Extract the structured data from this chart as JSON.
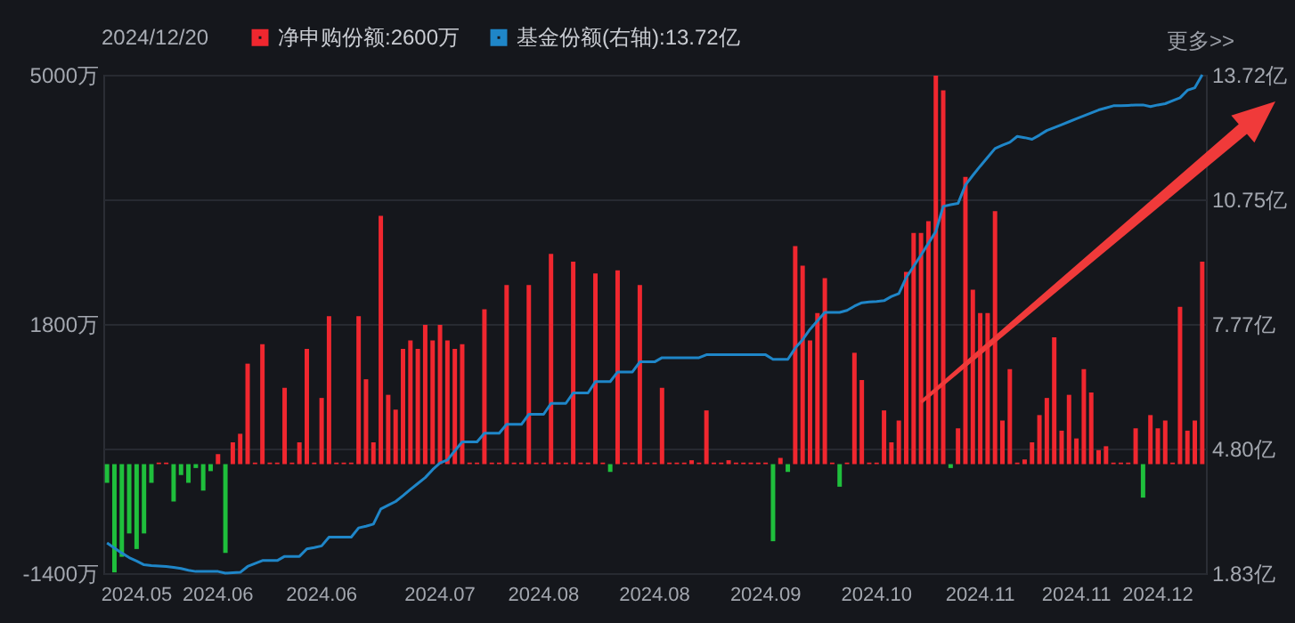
{
  "chart_data": {
    "type": "bar",
    "title": "2024/12/20",
    "categories": [
      null,
      null,
      null,
      null,
      "2024.05",
      null,
      null,
      null,
      null,
      null,
      null,
      null,
      null,
      null,
      null,
      "2024.06",
      null,
      null,
      null,
      null,
      null,
      null,
      null,
      null,
      null,
      null,
      null,
      null,
      null,
      "2024.06",
      null,
      null,
      null,
      null,
      null,
      null,
      null,
      null,
      null,
      null,
      null,
      null,
      null,
      null,
      null,
      "2024.07",
      null,
      null,
      null,
      null,
      null,
      null,
      null,
      null,
      null,
      null,
      null,
      null,
      null,
      "2024.08",
      null,
      null,
      null,
      null,
      null,
      null,
      null,
      null,
      null,
      null,
      null,
      null,
      null,
      null,
      "2024.08",
      null,
      null,
      null,
      null,
      null,
      null,
      null,
      null,
      null,
      null,
      null,
      null,
      null,
      null,
      "2024.09",
      null,
      null,
      null,
      null,
      null,
      null,
      null,
      null,
      null,
      null,
      null,
      null,
      null,
      null,
      "2024.10",
      null,
      null,
      null,
      null,
      null,
      null,
      null,
      null,
      null,
      null,
      null,
      null,
      null,
      "2024.11",
      null,
      null,
      null,
      null,
      null,
      null,
      null,
      null,
      null,
      null,
      null,
      null,
      "2024.11",
      null,
      null,
      null,
      null,
      null,
      null,
      null,
      null,
      null,
      null,
      "2024.12",
      null,
      null,
      null,
      null,
      null,
      null
    ],
    "series": [
      {
        "name": "净申购份额:2600万",
        "color": "#f0272f",
        "values": [
          -240,
          -1390,
          -1190,
          -890,
          -1090,
          -890,
          -240,
          20,
          20,
          -480,
          -140,
          -240,
          -50,
          -340,
          -90,
          130,
          -1140,
          280,
          390,
          1290,
          20,
          1540,
          20,
          20,
          980,
          20,
          280,
          1480,
          20,
          850,
          1900,
          20,
          20,
          20,
          1900,
          1090,
          280,
          3190,
          890,
          700,
          1480,
          1590,
          1480,
          1790,
          1590,
          1790,
          1590,
          1480,
          1540,
          20,
          20,
          1990,
          20,
          20,
          2300,
          20,
          20,
          2300,
          20,
          20,
          2700,
          20,
          20,
          2600,
          20,
          20,
          2450,
          20,
          -100,
          2490,
          20,
          20,
          2300,
          20,
          20,
          980,
          20,
          20,
          20,
          50,
          20,
          690,
          20,
          20,
          50,
          20,
          20,
          20,
          20,
          20,
          -990,
          80,
          -100,
          2800,
          2550,
          1590,
          1940,
          2390,
          20,
          -290,
          20,
          1430,
          1080,
          20,
          20,
          690,
          280,
          560,
          2470,
          2970,
          2970,
          3120,
          4990,
          4800,
          -50,
          460,
          3690,
          2240,
          1940,
          1940,
          3250,
          560,
          1220,
          20,
          60,
          280,
          630,
          850,
          1630,
          430,
          890,
          330,
          1220,
          920,
          180,
          230,
          20,
          20,
          20,
          460,
          -430,
          630,
          460,
          560,
          20,
          2020,
          430,
          560,
          2600
        ],
        "colors": [
          "#1fbf3c",
          "#1fbf3c",
          "#1fbf3c",
          "#1fbf3c",
          "#1fbf3c",
          "#1fbf3c",
          "#1fbf3c",
          "#f0272f",
          "#f0272f",
          "#1fbf3c",
          "#1fbf3c",
          "#1fbf3c",
          "#1fbf3c",
          "#1fbf3c",
          "#1fbf3c",
          "#f0272f",
          "#1fbf3c",
          "#f0272f",
          "#f0272f",
          "#f0272f",
          "#f0272f",
          "#f0272f",
          "#f0272f",
          "#f0272f",
          "#f0272f",
          "#f0272f",
          "#f0272f",
          "#f0272f",
          "#f0272f",
          "#f0272f",
          "#f0272f",
          "#f0272f",
          "#f0272f",
          "#f0272f",
          "#f0272f",
          "#f0272f",
          "#f0272f",
          "#f0272f",
          "#f0272f",
          "#f0272f",
          "#f0272f",
          "#f0272f",
          "#f0272f",
          "#f0272f",
          "#f0272f",
          "#f0272f",
          "#f0272f",
          "#f0272f",
          "#f0272f",
          "#f0272f",
          "#f0272f",
          "#f0272f",
          "#f0272f",
          "#f0272f",
          "#f0272f",
          "#f0272f",
          "#f0272f",
          "#f0272f",
          "#f0272f",
          "#f0272f",
          "#f0272f",
          "#f0272f",
          "#f0272f",
          "#f0272f",
          "#f0272f",
          "#f0272f",
          "#f0272f",
          "#f0272f",
          "#1fbf3c",
          "#f0272f",
          "#f0272f",
          "#f0272f",
          "#f0272f",
          "#f0272f",
          "#f0272f",
          "#f0272f",
          "#f0272f",
          "#f0272f",
          "#f0272f",
          "#f0272f",
          "#f0272f",
          "#f0272f",
          "#f0272f",
          "#f0272f",
          "#f0272f",
          "#f0272f",
          "#f0272f",
          "#f0272f",
          "#f0272f",
          "#f0272f",
          "#1fbf3c",
          "#f0272f",
          "#1fbf3c",
          "#f0272f",
          "#f0272f",
          "#f0272f",
          "#f0272f",
          "#f0272f",
          "#f0272f",
          "#1fbf3c",
          "#f0272f",
          "#f0272f",
          "#f0272f",
          "#f0272f",
          "#f0272f",
          "#f0272f",
          "#f0272f",
          "#f0272f",
          "#f0272f",
          "#f0272f",
          "#f0272f",
          "#f0272f",
          "#f0272f",
          "#f0272f",
          "#1fbf3c",
          "#f0272f",
          "#f0272f",
          "#f0272f",
          "#f0272f",
          "#f0272f",
          "#f0272f",
          "#f0272f",
          "#f0272f",
          "#f0272f",
          "#f0272f",
          "#f0272f",
          "#f0272f",
          "#f0272f",
          "#f0272f",
          "#f0272f",
          "#f0272f",
          "#f0272f",
          "#f0272f",
          "#f0272f",
          "#f0272f",
          "#f0272f",
          "#f0272f",
          "#f0272f",
          "#f0272f",
          "#f0272f",
          "#1fbf3c",
          "#f0272f",
          "#f0272f",
          "#f0272f",
          "#f0272f",
          "#f0272f",
          "#f0272f",
          "#f0272f",
          "#f0272f"
        ]
      },
      {
        "name": "基金份额(右轴):13.72亿",
        "type": "line",
        "axis": "y2",
        "color": "#1f86c8",
        "values": [
          2.55,
          2.43,
          2.31,
          2.2,
          2.12,
          2.03,
          2.01,
          2.0,
          1.99,
          1.97,
          1.94,
          1.9,
          1.87,
          1.87,
          1.87,
          1.87,
          1.83,
          1.84,
          1.85,
          1.99,
          2.06,
          2.13,
          2.13,
          2.13,
          2.23,
          2.23,
          2.23,
          2.41,
          2.44,
          2.48,
          2.69,
          2.69,
          2.69,
          2.69,
          2.91,
          2.95,
          3.0,
          3.36,
          3.45,
          3.54,
          3.68,
          3.83,
          3.97,
          4.11,
          4.3,
          4.46,
          4.53,
          4.75,
          4.96,
          4.96,
          4.96,
          5.17,
          5.17,
          5.17,
          5.38,
          5.38,
          5.38,
          5.62,
          5.62,
          5.62,
          5.88,
          5.88,
          5.88,
          6.13,
          6.13,
          6.13,
          6.4,
          6.4,
          6.4,
          6.63,
          6.63,
          6.63,
          6.87,
          6.87,
          6.87,
          6.97,
          6.97,
          6.97,
          6.97,
          6.97,
          6.97,
          7.04,
          7.04,
          7.04,
          7.04,
          7.04,
          7.04,
          7.04,
          7.04,
          7.04,
          6.93,
          6.93,
          6.93,
          7.2,
          7.4,
          7.65,
          7.85,
          8.05,
          8.05,
          8.05,
          8.1,
          8.2,
          8.28,
          8.3,
          8.31,
          8.33,
          8.43,
          8.5,
          8.88,
          9.15,
          9.42,
          9.7,
          9.98,
          10.58,
          10.62,
          10.65,
          11.09,
          11.32,
          11.54,
          11.75,
          11.96,
          12.04,
          12.11,
          12.25,
          12.22,
          12.18,
          12.28,
          12.39,
          12.46,
          12.53,
          12.6,
          12.67,
          12.74,
          12.81,
          12.88,
          12.93,
          12.98,
          12.98,
          12.99,
          13.0,
          13.0,
          12.96,
          13.0,
          13.03,
          13.1,
          13.17,
          13.35,
          13.41,
          13.72
        ]
      }
    ],
    "ylim": [
      -1400,
      5000
    ],
    "yticks": [
      {
        "value": -1400,
        "label": "-1400万"
      },
      {
        "value": 200,
        "label": null
      },
      {
        "value": 1800,
        "label": "1800万"
      },
      {
        "value": 3400,
        "label": null
      },
      {
        "value": 5000,
        "label": "5000万"
      }
    ],
    "y2lim": [
      1.83,
      13.72
    ],
    "y2ticks": [
      {
        "value": 1.83,
        "label": "1.83亿"
      },
      {
        "value": 4.8,
        "label": "4.80亿"
      },
      {
        "value": 7.77,
        "label": "7.77亿"
      },
      {
        "value": 10.75,
        "label": "10.75亿"
      },
      {
        "value": 13.72,
        "label": "13.72亿"
      }
    ],
    "grid": "y",
    "legend": "top left",
    "annotations": [
      "更多>>"
    ]
  }
}
